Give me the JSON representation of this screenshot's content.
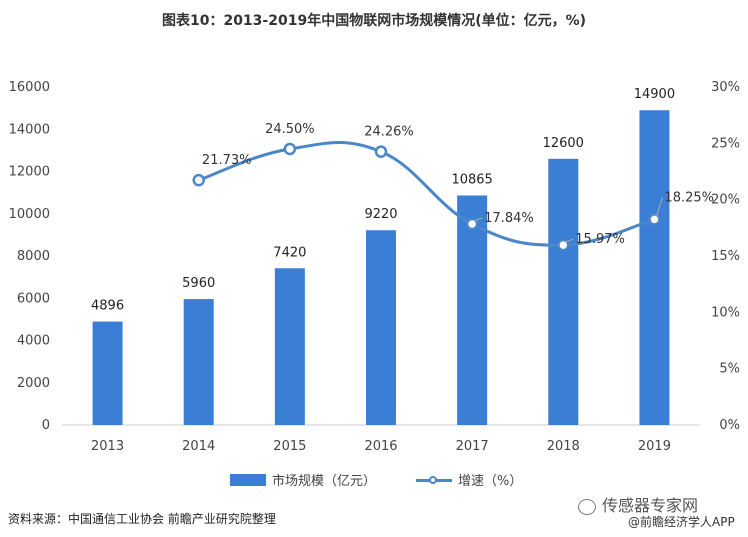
{
  "chart_data": {
    "type": "bar+line",
    "title": "图表10：2013-2019年中国物联网市场规模情况(单位：亿元，%)",
    "categories": [
      "2013",
      "2014",
      "2015",
      "2016",
      "2017",
      "2018",
      "2019"
    ],
    "series": [
      {
        "name": "市场规模（亿元）",
        "type": "bar",
        "axis": "left",
        "values": [
          4896,
          5960,
          7420,
          9220,
          10865,
          12600,
          14900
        ],
        "labels": [
          "4896",
          "5960",
          "7420",
          "9220",
          "10865",
          "12600",
          "14900"
        ]
      },
      {
        "name": "增速（%）",
        "type": "line",
        "axis": "right",
        "values": [
          null,
          21.73,
          24.5,
          24.26,
          17.84,
          15.97,
          18.25
        ],
        "labels": [
          "",
          "21.73%",
          "24.50%",
          "24.26%",
          "17.84%",
          "15.97%",
          "18.25%"
        ]
      }
    ],
    "y_left": {
      "min": 0,
      "max": 16000,
      "ticks": [
        "0",
        "2000",
        "4000",
        "6000",
        "8000",
        "10000",
        "12000",
        "14000",
        "16000"
      ]
    },
    "y_right": {
      "min": 0,
      "max": 30,
      "ticks": [
        "0%",
        "5%",
        "10%",
        "15%",
        "20%",
        "25%",
        "30%"
      ]
    },
    "grid": false,
    "legend_position": "bottom"
  },
  "colors": {
    "bar": "#3a7fd5",
    "line": "#4a86c8",
    "text": "#333333"
  },
  "legend": {
    "bar_label": "市场规模（亿元）",
    "line_label": "增速（%）"
  },
  "footer": {
    "source": "资料来源：中国通信工业协会 前瞻产业研究院整理"
  },
  "watermark": {
    "logo_text": "传感器专家网",
    "app_text": "@前瞻经济学人APP"
  }
}
